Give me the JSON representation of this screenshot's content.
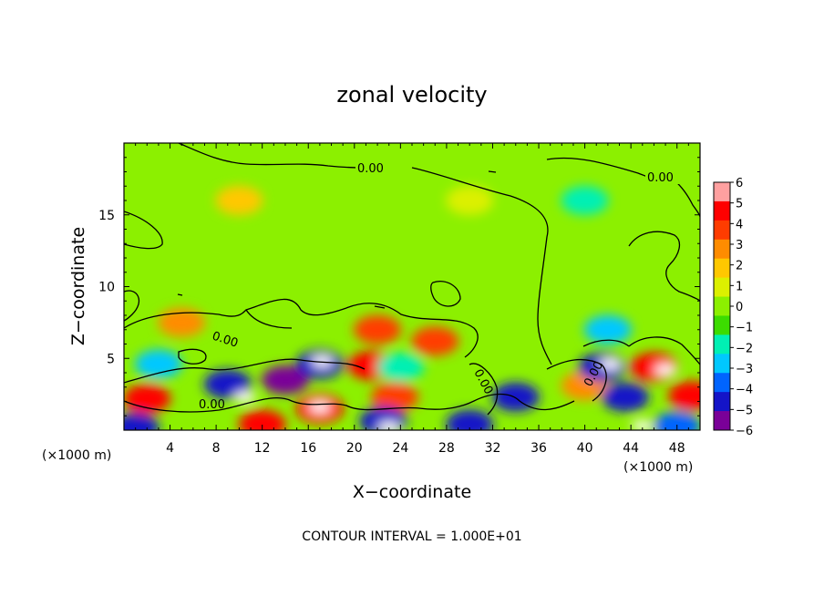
{
  "chart_data": {
    "type": "heatmap",
    "title": "zonal velocity",
    "xlabel": "X−coordinate",
    "ylabel": "Z−coordinate",
    "x_unit_left": "(×1000 m)",
    "x_unit_right": "(×1000 m)",
    "xlim": [
      0,
      50
    ],
    "ylim": [
      0,
      20
    ],
    "x_ticks": [
      4,
      8,
      12,
      16,
      20,
      24,
      28,
      32,
      36,
      40,
      44,
      48
    ],
    "y_ticks": [
      5,
      10,
      15
    ],
    "colorbar": {
      "ticks": [
        6,
        5,
        4,
        3,
        2,
        1,
        0,
        -1,
        -2,
        -3,
        -4,
        -5,
        -6
      ],
      "tick_labels": [
        "6",
        "5",
        "4",
        "3",
        "2",
        "1",
        "0",
        "−1",
        "−2",
        "−3",
        "−4",
        "−5",
        "−6"
      ],
      "range": [
        -6,
        6
      ],
      "colors": [
        "#7a0098",
        "#1414c8",
        "#0064ff",
        "#00c8ff",
        "#00f0b4",
        "#3cdc00",
        "#8cf000",
        "#dcf000",
        "#ffc800",
        "#ff8c00",
        "#ff3c00",
        "#ff0000",
        "#ffa0a0"
      ]
    },
    "contour_label": "0.00",
    "contour_interval_note": "CONTOUR INTERVAL = 1.000E+01",
    "features": [
      {
        "x": 2,
        "z": 2.2,
        "v": 5
      },
      {
        "x": 9,
        "z": 3.2,
        "v": -5
      },
      {
        "x": 10.5,
        "z": 2.3,
        "v": 6.5
      },
      {
        "x": 14,
        "z": 3.5,
        "v": -6
      },
      {
        "x": 17,
        "z": 4.6,
        "v": -5
      },
      {
        "x": 17.2,
        "z": 4.8,
        "v": 6.5
      },
      {
        "x": 17,
        "z": 1.5,
        "v": 5
      },
      {
        "x": 17,
        "z": 1.6,
        "v": 6.5
      },
      {
        "x": 12,
        "z": 0.4,
        "v": 5
      },
      {
        "x": 21.5,
        "z": 4.5,
        "v": 5
      },
      {
        "x": 22,
        "z": 7,
        "v": 4
      },
      {
        "x": 27,
        "z": 6.2,
        "v": 4
      },
      {
        "x": 23.5,
        "z": 2.3,
        "v": 4
      },
      {
        "x": 24,
        "z": 4.4,
        "v": -2
      },
      {
        "x": 22.5,
        "z": 0.6,
        "v": -5
      },
      {
        "x": 23,
        "z": 0.2,
        "v": 6.5
      },
      {
        "x": 30,
        "z": 0.4,
        "v": -5
      },
      {
        "x": 34,
        "z": 2.3,
        "v": -5
      },
      {
        "x": 5,
        "z": 7.5,
        "v": 3
      },
      {
        "x": 3,
        "z": 4.6,
        "v": -3
      },
      {
        "x": 40,
        "z": 3.1,
        "v": 3
      },
      {
        "x": 41.5,
        "z": 4.4,
        "v": -5
      },
      {
        "x": 42.2,
        "z": 4.6,
        "v": 6.5
      },
      {
        "x": 43.5,
        "z": 2.3,
        "v": -5
      },
      {
        "x": 46,
        "z": 4.4,
        "v": 5
      },
      {
        "x": 47,
        "z": 4.2,
        "v": 6.5
      },
      {
        "x": 49.3,
        "z": 2.4,
        "v": 5
      },
      {
        "x": 42,
        "z": 7,
        "v": -3
      },
      {
        "x": 45,
        "z": 0.3,
        "v": 6.5
      },
      {
        "x": 40,
        "z": 16,
        "v": -2
      },
      {
        "x": 10,
        "z": 16,
        "v": 1.6
      },
      {
        "x": 30,
        "z": 16,
        "v": 1.2
      },
      {
        "x": 1,
        "z": 0.2,
        "v": -5
      },
      {
        "x": 48,
        "z": 0.3,
        "v": -4
      }
    ]
  }
}
